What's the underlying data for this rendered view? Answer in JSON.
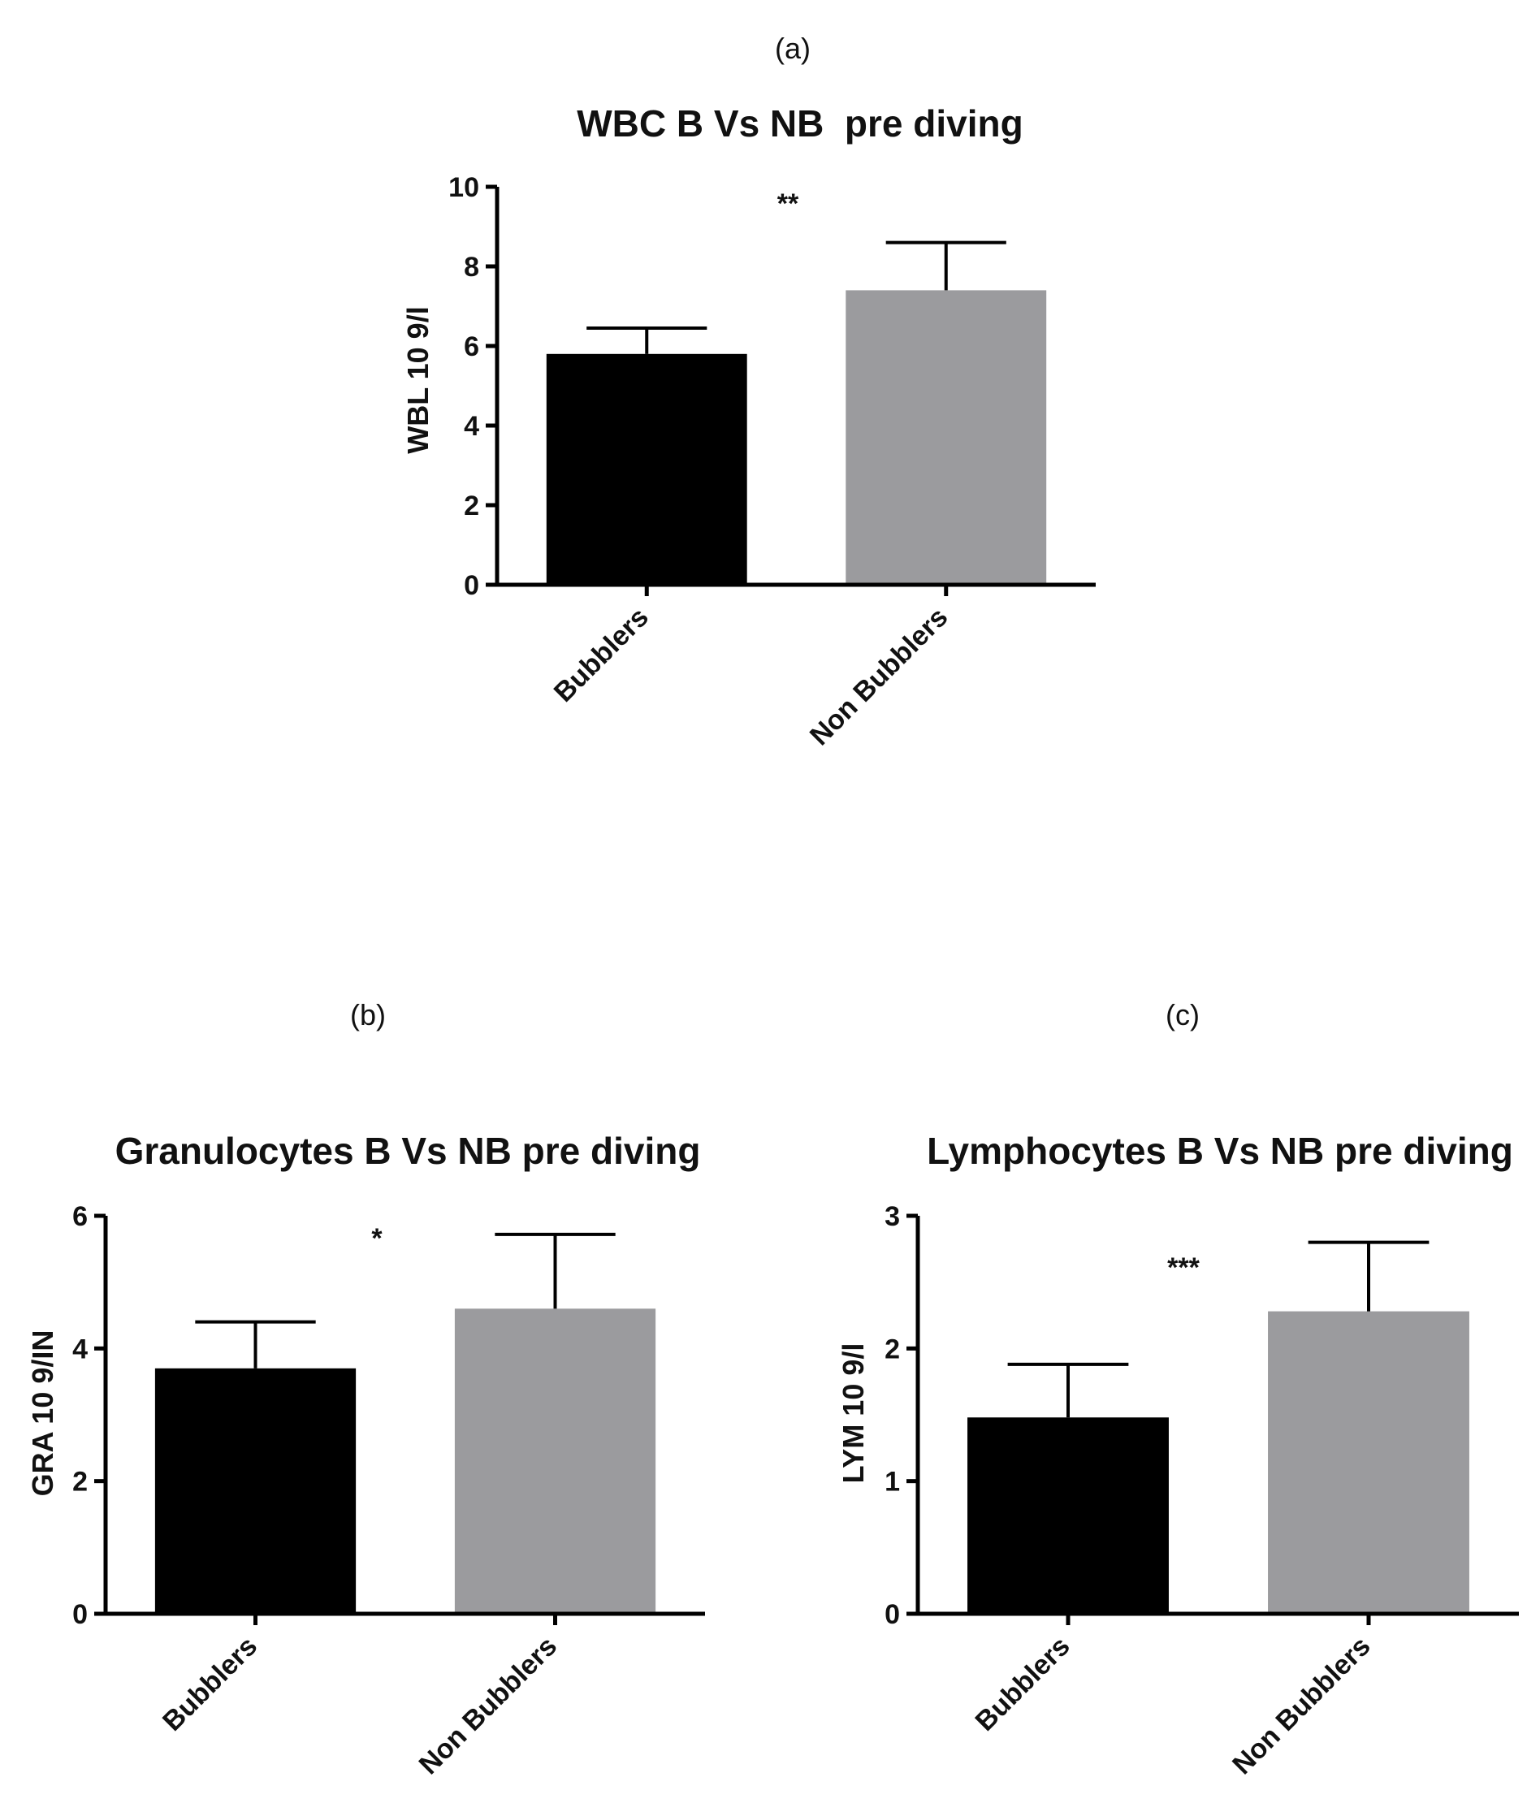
{
  "chart_data": [
    {
      "type": "bar",
      "panel": "(a)",
      "title": "WBC B Vs NB  pre diving",
      "ylabel": "WBL 10 9/l",
      "xlabel": "",
      "categories": [
        "Bubblers",
        "Non Bubblers"
      ],
      "values": [
        5.8,
        7.4
      ],
      "errors": [
        0.65,
        1.2
      ],
      "ylim": [
        0,
        10
      ],
      "yticks": [
        0,
        2,
        4,
        6,
        8,
        10
      ],
      "significance": "**",
      "colors": [
        "#000000",
        "#9b9b9e"
      ]
    },
    {
      "type": "bar",
      "panel": "(b)",
      "title": "Granulocytes B Vs NB pre diving",
      "ylabel": "GRA 10 9/IN",
      "xlabel": "",
      "categories": [
        "Bubblers",
        "Non Bubblers"
      ],
      "values": [
        3.7,
        4.6
      ],
      "errors": [
        0.7,
        1.12
      ],
      "ylim": [
        0,
        6
      ],
      "yticks": [
        0,
        2,
        4,
        6
      ],
      "significance": "*",
      "colors": [
        "#000000",
        "#9b9b9e"
      ]
    },
    {
      "type": "bar",
      "panel": "(c)",
      "title": "Lymphocytes B Vs NB pre diving",
      "ylabel": "LYM 10 9/l",
      "xlabel": "",
      "categories": [
        "Bubblers",
        "Non Bubblers"
      ],
      "values": [
        1.48,
        2.28
      ],
      "errors": [
        0.4,
        0.52
      ],
      "ylim": [
        0,
        3
      ],
      "yticks": [
        0,
        1,
        2,
        3
      ],
      "significance": "***",
      "colors": [
        "#000000",
        "#9b9b9e"
      ]
    }
  ]
}
